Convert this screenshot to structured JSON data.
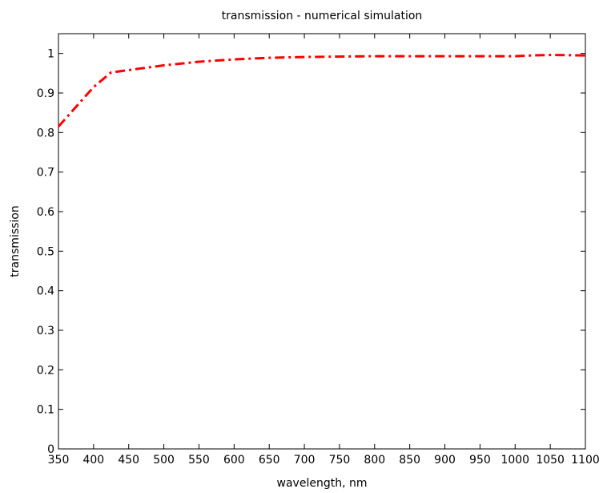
{
  "chart_data": {
    "type": "line",
    "title": "transmission - numerical simulation",
    "xlabel": "wavelength, nm",
    "ylabel": "transmission",
    "xlim": [
      350,
      1100
    ],
    "ylim": [
      0,
      1.05
    ],
    "xticks": [
      350,
      400,
      450,
      500,
      550,
      600,
      650,
      700,
      750,
      800,
      850,
      900,
      950,
      1000,
      1050,
      1100
    ],
    "xtick_labels": [
      "350",
      "400",
      "450",
      "500",
      "550",
      "600",
      "650",
      "700",
      "750",
      "800",
      "850",
      "900",
      "950",
      "1000",
      "1050",
      "1100"
    ],
    "yticks": [
      0,
      0.1,
      0.2,
      0.3,
      0.4,
      0.5,
      0.6,
      0.7,
      0.8,
      0.9,
      1
    ],
    "ytick_labels": [
      "0",
      "0.1",
      "0.2",
      "0.3",
      "0.4",
      "0.5",
      "0.6",
      "0.7",
      "0.8",
      "0.9",
      "1"
    ],
    "grid": false,
    "series": [
      {
        "color": "#ff0000",
        "line_style": "dash-dot",
        "x": [
          350,
          375,
          400,
          425,
          450,
          500,
          550,
          600,
          650,
          700,
          750,
          800,
          850,
          900,
          950,
          1000,
          1025,
          1050,
          1100
        ],
        "y": [
          0.815,
          0.865,
          0.915,
          0.952,
          0.958,
          0.97,
          0.979,
          0.985,
          0.989,
          0.991,
          0.992,
          0.993,
          0.993,
          0.993,
          0.993,
          0.993,
          0.995,
          0.996,
          0.995
        ]
      }
    ]
  }
}
